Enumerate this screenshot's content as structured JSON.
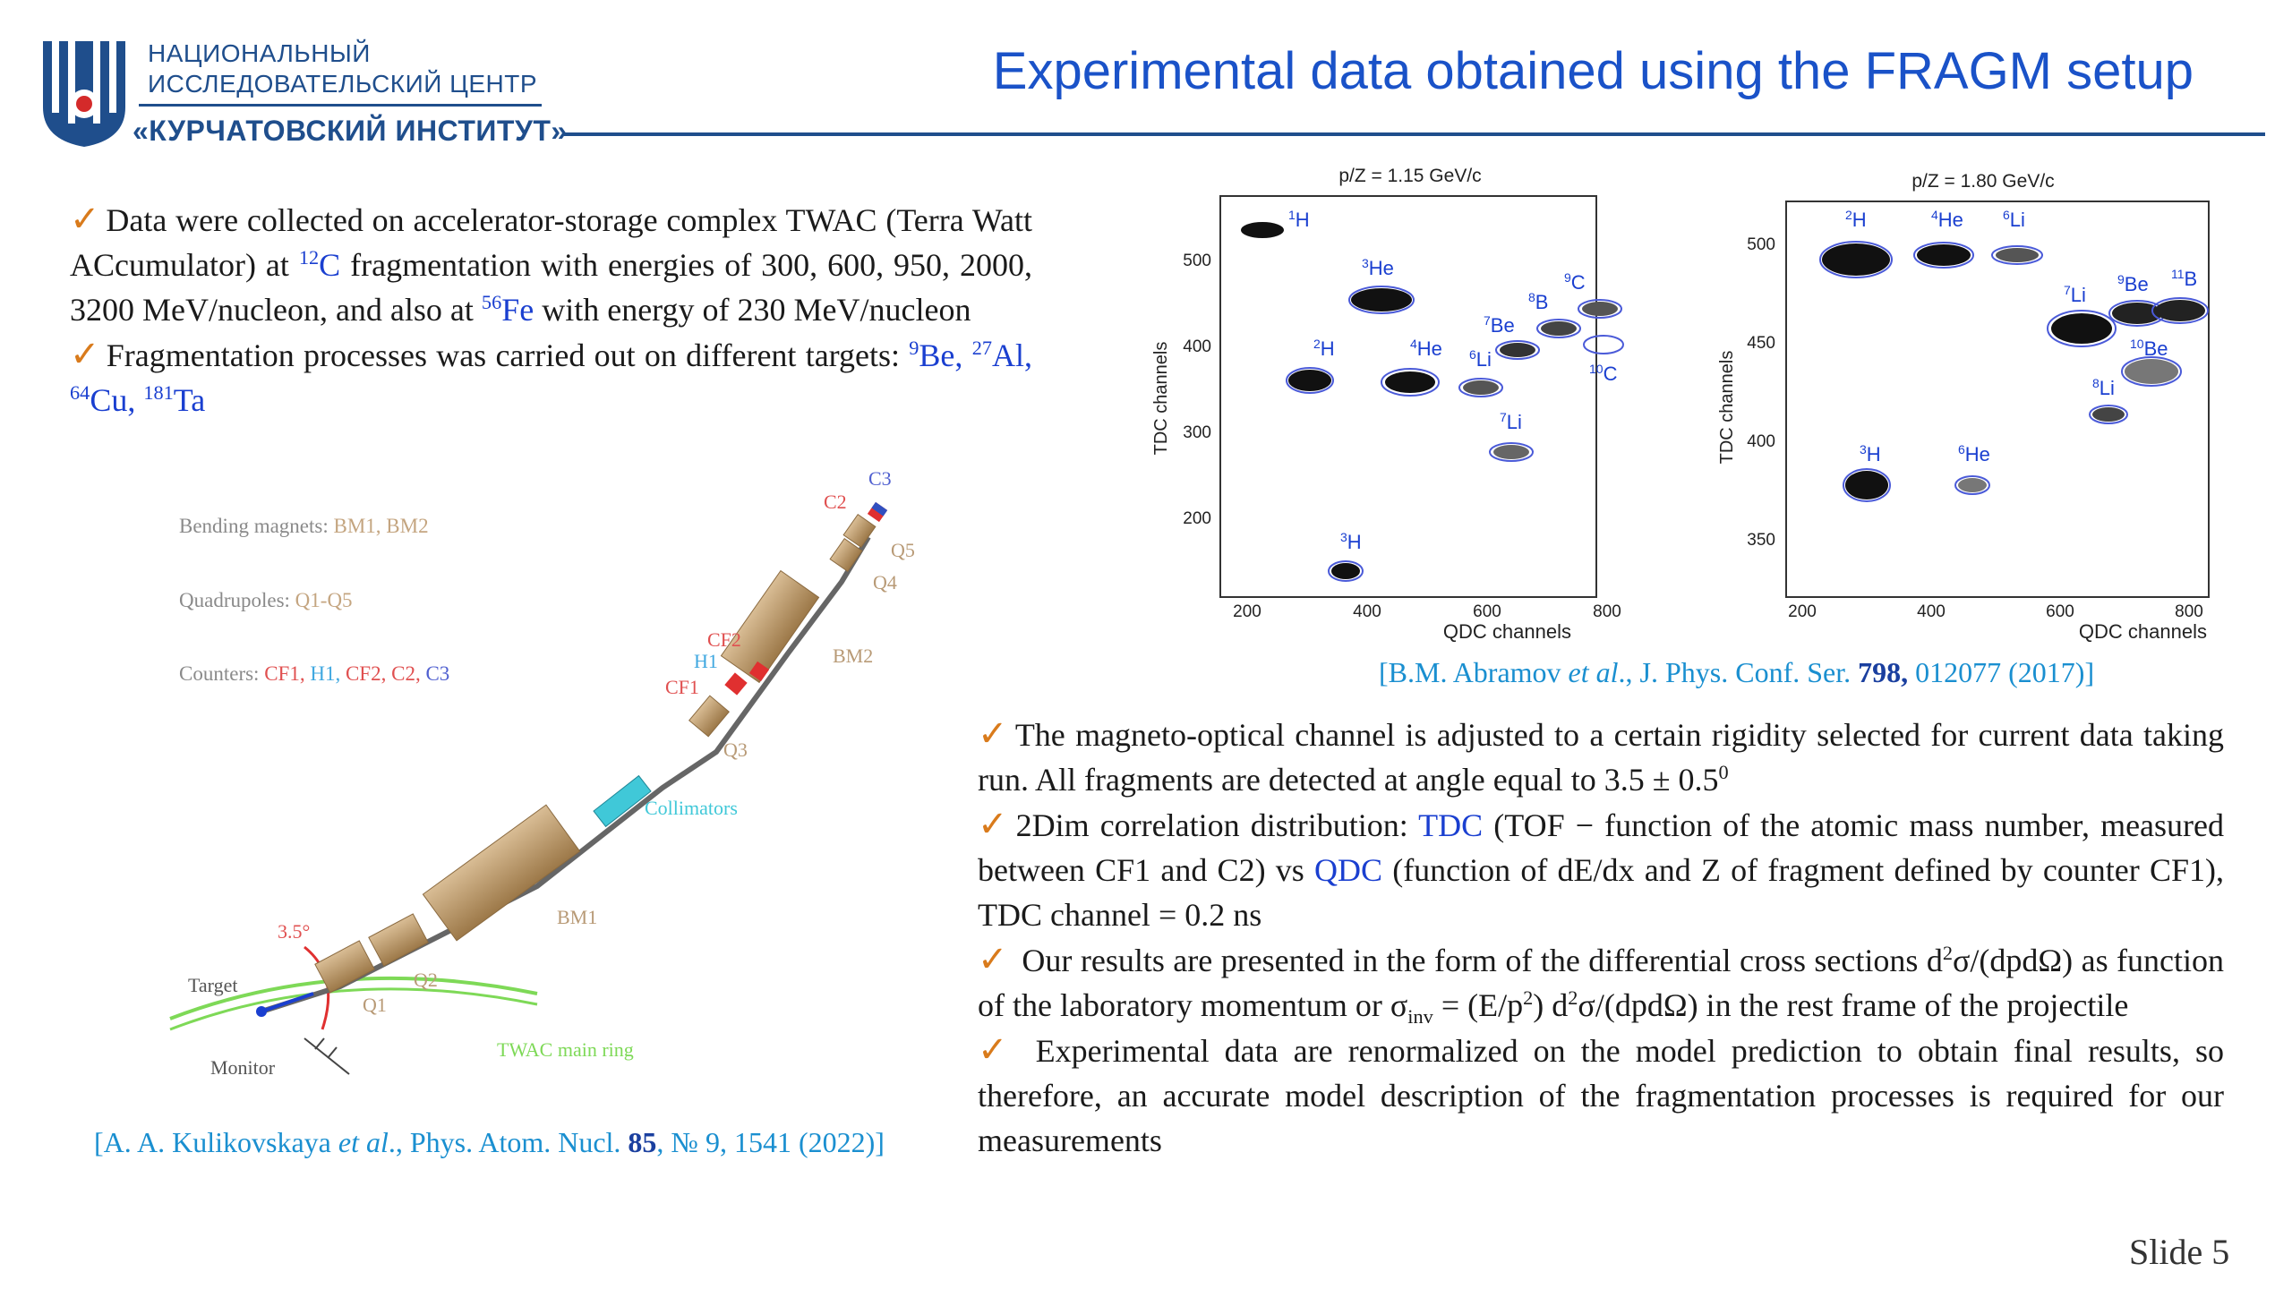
{
  "header": {
    "org_line1": "НАЦИОНАЛЬНЫЙ",
    "org_line2": "ИССЛЕДОВАТЕЛЬСКИЙ ЦЕНТР",
    "org_line3": "«КУРЧАТОВСКИЙ ИНСТИТУТ»",
    "title": "Experimental data obtained using the FRAGM setup"
  },
  "left": {
    "bullet1": {
      "t1": "Data were collected on accelerator-storage complex TWAC (Terra Watt ACcumulator) at ",
      "sup1": "12",
      "el1": "C",
      "t2": " fragmentation with energies of 300, 600, 950, 2000, 3200 MeV/nucleon, and also at ",
      "sup2": "56",
      "el2": "Fe",
      "t3": " with energy of 230 MeV/nucleon"
    },
    "bullet2": {
      "t1": "Fragmentation processes was carried out on different targets: ",
      "s1": "9",
      "e1": "Be,",
      "s2": "27",
      "e2": "Al,",
      "s3": "64",
      "e3": "Cu,",
      "s4": "181",
      "e4": "Ta"
    },
    "reference": {
      "authors": "[A. A. Kulikovskaya ",
      "etal": "et al",
      "journal": "., Phys. Atom. Nucl. ",
      "vol": "85",
      "rest": ", № 9, 1541 (2022)]"
    }
  },
  "diagram": {
    "legend_bending_label": "Bending magnets: ",
    "legend_bending_vals": "BM1, BM2",
    "legend_quad_label": "Quadrupoles: ",
    "legend_quad_vals": "Q1-Q5",
    "legend_counters_label": "Counters: ",
    "counters": [
      {
        "name": "CF1,",
        "color": "#e05050"
      },
      {
        "name": "H1,",
        "color": "#40a8e0"
      },
      {
        "name": "CF2,",
        "color": "#e05050"
      },
      {
        "name": "C2,",
        "color": "#e05050"
      },
      {
        "name": "C3",
        "color": "#5060d0"
      }
    ],
    "labels": {
      "c2": "C2",
      "c3": "C3",
      "q5": "Q5",
      "q4": "Q4",
      "bm2": "BM2",
      "cf2": "CF2",
      "h1": "H1",
      "cf1": "CF1",
      "q3": "Q3",
      "collimators": "Collimators",
      "bm1": "BM1",
      "angle": "3.5°",
      "q2": "Q2",
      "q1": "Q1",
      "target": "Target",
      "monitor": "Monitor",
      "ring": "TWAC main ring"
    },
    "colors": {
      "magnet": "#b8956a",
      "label": "#b89a76",
      "collimator": "#40c8d8",
      "ring": "#7ed957",
      "counter_red": "#e03030"
    }
  },
  "plots": {
    "left": {
      "title": "p/Z = 1.15 GeV/c",
      "ylabel": "TDC channels",
      "xlabel": "QDC channels",
      "xticks": [
        "200",
        "400",
        "600",
        "800"
      ],
      "yticks": [
        "200",
        "300",
        "400",
        "500"
      ],
      "labels": [
        {
          "mass": "1",
          "el": "H"
        },
        {
          "mass": "3",
          "el": "He"
        },
        {
          "mass": "2",
          "el": "H"
        },
        {
          "mass": "4",
          "el": "He"
        },
        {
          "mass": "6",
          "el": "Li"
        },
        {
          "mass": "7",
          "el": "Be"
        },
        {
          "mass": "8",
          "el": "B"
        },
        {
          "mass": "9",
          "el": "C"
        },
        {
          "mass": "10",
          "el": "C"
        },
        {
          "mass": "7",
          "el": "Li"
        },
        {
          "mass": "3",
          "el": "H"
        }
      ]
    },
    "right": {
      "title": "p/Z = 1.80 GeV/c",
      "ylabel": "TDC channels",
      "xlabel": "QDC channels",
      "xticks": [
        "200",
        "400",
        "600",
        "800"
      ],
      "yticks": [
        "350",
        "400",
        "450",
        "500"
      ],
      "labels": [
        {
          "mass": "2",
          "el": "H"
        },
        {
          "mass": "4",
          "el": "He"
        },
        {
          "mass": "6",
          "el": "Li"
        },
        {
          "mass": "9",
          "el": "Be"
        },
        {
          "mass": "11",
          "el": "B"
        },
        {
          "mass": "7",
          "el": "Li"
        },
        {
          "mass": "10",
          "el": "Be"
        },
        {
          "mass": "8",
          "el": "Li"
        },
        {
          "mass": "3",
          "el": "H"
        },
        {
          "mass": "6",
          "el": "He"
        }
      ]
    },
    "reference": {
      "authors": "[B.M. Abramov ",
      "etal": "et al",
      "journal": "., J. Phys. Conf. Ser. ",
      "vol": "798,",
      "rest": " 012077 (2017)]"
    }
  },
  "right": {
    "bullet1": {
      "t1": "The magneto-optical channel is adjusted to a certain rigidity selected for current data taking run. All fragments are detected at angle equal to 3.5 ± 0.5",
      "sup": "0"
    },
    "bullet2": {
      "t1": "2Dim correlation distribution: ",
      "tdc": "TDC",
      "t2": " (TOF − function of the atomic mass number, measured between CF1 and C2) vs ",
      "qdc": "QDC",
      "t3": " (function of dE/dx and Z of fragment defined by counter CF1), TDC channel = 0.2 ns"
    },
    "bullet3": {
      "t1": " Our results are presented in the form of the differential cross sections d",
      "s1": "2",
      "t2": "σ/(dpdΩ) as function of the laboratory momentum or σ",
      "sub": "inv",
      "t3": " = (E/p",
      "s2": "2",
      "t4": ") d",
      "s3": "2",
      "t5": "σ/(dpdΩ) in the rest frame of the projectile"
    },
    "bullet4": {
      "t1": " Experimental data are renormalized on the model prediction to obtain final results, so therefore, an accurate model description of the fragmentation processes is required for our measurements"
    }
  },
  "footer": {
    "slide": "Slide 5"
  },
  "icons": {
    "bullet": "check-icon",
    "logo": "kurchatov-logo-icon"
  },
  "colors": {
    "title": "#1a52c8",
    "org": "#1f4e8c",
    "check": "#d97b1c",
    "blue_text": "#1a3fd0",
    "reference": "#1a8fd0"
  }
}
